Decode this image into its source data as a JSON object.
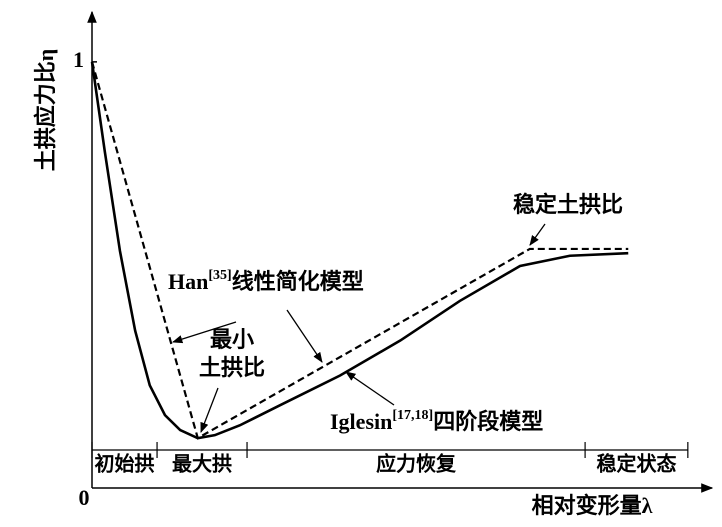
{
  "chart_data": {
    "type": "line",
    "y_label": "土拱应力比η",
    "x_label": "相对变形量λ",
    "xlim": [
      0,
      1
    ],
    "ylim": [
      0,
      1.117
    ],
    "yticks": [
      0,
      1
    ],
    "series": [
      {
        "name": "Iglesin[17,18]四阶段模型",
        "color": "#000000",
        "style": "solid",
        "x": [
          0,
          0.021,
          0.046,
          0.071,
          0.095,
          0.12,
          0.145,
          0.174,
          0.202,
          0.243,
          0.309,
          0.408,
          0.507,
          0.605,
          0.704,
          0.786,
          0.882
        ],
        "values": [
          1,
          0.79,
          0.556,
          0.369,
          0.241,
          0.171,
          0.136,
          0.117,
          0.124,
          0.147,
          0.194,
          0.264,
          0.346,
          0.439,
          0.521,
          0.545,
          0.551
        ]
      },
      {
        "name": "Han[35]线性简化模型",
        "color": "#000000",
        "style": "dashed",
        "x": [
          0,
          0.174,
          0.72,
          0.882
        ],
        "values": [
          1,
          0.117,
          0.561,
          0.561
        ]
      }
    ],
    "annotations": [
      {
        "parts": [
          "Han",
          "[35]",
          "线性简化模型"
        ]
      },
      {
        "parts": [
          "Iglesin",
          "[17,18]",
          "四阶段模型"
        ]
      },
      {
        "lines": [
          "最小",
          "土拱比"
        ]
      },
      {
        "lines": [
          "稳定土拱比"
        ]
      }
    ],
    "stages": {
      "bounds": [
        0,
        0.107,
        0.255,
        0.811,
        0.98
      ],
      "labels": [
        "初始拱",
        "最大拱",
        "应力恢复",
        "稳定状态"
      ]
    }
  }
}
